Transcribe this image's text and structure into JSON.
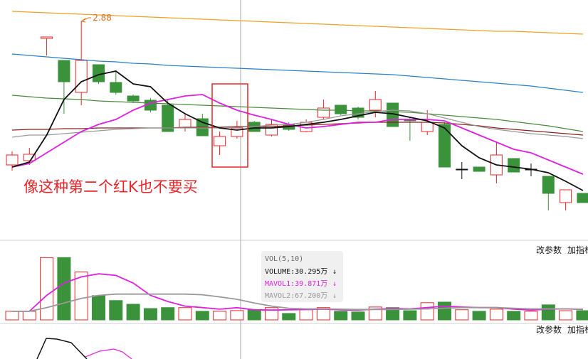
{
  "chart_data": [
    {
      "type": "candlestick",
      "ylim": [
        2.27,
        2.94
      ],
      "up_color": "#e8262a",
      "down_color": "#3a923a",
      "flat_color": "#111111",
      "open": [
        2.476,
        2.488,
        2.832,
        2.77,
        2.68,
        2.758,
        2.708,
        2.67,
        2.658,
        2.644,
        2.58,
        2.606,
        2.53,
        2.556,
        2.596,
        2.56,
        2.59,
        2.57,
        2.61,
        2.644,
        2.636,
        2.63,
        2.65,
        2.604,
        2.57,
        2.59,
        2.464,
        2.47,
        2.448,
        2.494,
        2.464,
        2.444,
        2.37,
        2.396
      ],
      "high": [
        2.514,
        2.524,
        2.836,
        2.77,
        2.88,
        2.758,
        2.74,
        2.674,
        2.664,
        2.66,
        2.62,
        2.62,
        2.57,
        2.6,
        2.6,
        2.604,
        2.596,
        2.604,
        2.66,
        2.644,
        2.64,
        2.684,
        2.65,
        2.61,
        2.63,
        2.596,
        2.484,
        2.47,
        2.54,
        2.494,
        2.48,
        2.444,
        2.406,
        2.396
      ],
      "low": [
        2.46,
        2.476,
        2.784,
        2.62,
        2.644,
        2.704,
        2.674,
        2.65,
        2.624,
        2.57,
        2.57,
        2.558,
        2.504,
        2.55,
        2.57,
        2.556,
        2.572,
        2.568,
        2.604,
        2.616,
        2.604,
        2.61,
        2.584,
        2.544,
        2.56,
        2.47,
        2.436,
        2.458,
        2.424,
        2.456,
        2.444,
        2.348,
        2.348,
        2.37
      ],
      "close": [
        2.504,
        2.506,
        2.836,
        2.71,
        2.77,
        2.71,
        2.68,
        2.656,
        2.63,
        2.57,
        2.604,
        2.558,
        2.556,
        2.58,
        2.57,
        2.59,
        2.576,
        2.596,
        2.636,
        2.62,
        2.61,
        2.66,
        2.584,
        2.6,
        2.596,
        2.47,
        2.464,
        2.458,
        2.504,
        2.456,
        2.464,
        2.396,
        2.406,
        2.37
      ],
      "series": [
        {
          "color": "#f0a020",
          "values": [
            2.908,
            2.906,
            2.904,
            2.902,
            2.9,
            2.898,
            2.896,
            2.894,
            2.892,
            2.89,
            2.888,
            2.886,
            2.884,
            2.882,
            2.88,
            2.878,
            2.876,
            2.874,
            2.872,
            2.87,
            2.868,
            2.866,
            2.864,
            2.862,
            2.86,
            2.858,
            2.856,
            2.854,
            2.852,
            2.852,
            2.85,
            2.848,
            2.846,
            2.844
          ]
        },
        {
          "color": "#2a7fc8",
          "values": [
            2.788,
            2.784,
            2.78,
            2.776,
            2.772,
            2.768,
            2.766,
            2.762,
            2.76,
            2.756,
            2.754,
            2.752,
            2.75,
            2.748,
            2.746,
            2.744,
            2.742,
            2.74,
            2.738,
            2.736,
            2.734,
            2.732,
            2.73,
            2.726,
            2.722,
            2.718,
            2.714,
            2.71,
            2.706,
            2.702,
            2.698,
            2.692,
            2.686,
            2.68
          ]
        },
        {
          "color": "#4a8a3a",
          "values": [
            2.672,
            2.668,
            2.664,
            2.662,
            2.66,
            2.656,
            2.654,
            2.652,
            2.65,
            2.648,
            2.646,
            2.644,
            2.642,
            2.64,
            2.638,
            2.636,
            2.634,
            2.632,
            2.63,
            2.63,
            2.628,
            2.628,
            2.626,
            2.624,
            2.62,
            2.616,
            2.612,
            2.608,
            2.604,
            2.598,
            2.592,
            2.586,
            2.578,
            2.57
          ]
        },
        {
          "color": "#8b2020",
          "values": [
            2.574,
            2.576,
            2.576,
            2.578,
            2.578,
            2.58,
            2.58,
            2.58,
            2.58,
            2.58,
            2.582,
            2.582,
            2.582,
            2.584,
            2.584,
            2.584,
            2.586,
            2.588,
            2.59,
            2.592,
            2.594,
            2.596,
            2.596,
            2.596,
            2.596,
            2.594,
            2.59,
            2.586,
            2.58,
            2.576,
            2.572,
            2.568,
            2.564,
            2.56
          ]
        },
        {
          "color": "#999999",
          "values": [
            2.554,
            2.56,
            2.56,
            2.564,
            2.568,
            2.572,
            2.576,
            2.578,
            2.58,
            2.58,
            2.58,
            2.58,
            2.58,
            2.582,
            2.584,
            2.588,
            2.59,
            2.596,
            2.604,
            2.614,
            2.62,
            2.626,
            2.63,
            2.628,
            2.62,
            2.608,
            2.596,
            2.584,
            2.576,
            2.57,
            2.564,
            2.56,
            2.556,
            2.55
          ]
        },
        {
          "color": "#e020e0",
          "values": [
            2.47,
            2.48,
            2.51,
            2.54,
            2.57,
            2.59,
            2.604,
            2.63,
            2.65,
            2.66,
            2.67,
            2.674,
            2.65,
            2.63,
            2.616,
            2.604,
            2.59,
            2.58,
            2.584,
            2.59,
            2.596,
            2.596,
            2.604,
            2.604,
            2.604,
            2.6,
            2.58,
            2.56,
            2.54,
            2.52,
            2.51,
            2.49,
            2.47,
            2.45
          ]
        },
        {
          "color": "#111111",
          "values": [
            2.47,
            2.484,
            2.56,
            2.66,
            2.71,
            2.73,
            2.74,
            2.704,
            2.696,
            2.65,
            2.62,
            2.596,
            2.58,
            2.574,
            2.58,
            2.58,
            2.584,
            2.59,
            2.596,
            2.604,
            2.614,
            2.624,
            2.62,
            2.61,
            2.6,
            2.58,
            2.53,
            2.496,
            2.476,
            2.47,
            2.464,
            2.454,
            2.43,
            2.404
          ]
        }
      ],
      "note": "像这种第二个红K也不要买",
      "buttons": [
        "改参数",
        "加指标"
      ]
    },
    {
      "type": "volume",
      "ylim": [
        0,
        220
      ],
      "values": [
        28,
        28,
        203,
        203,
        156,
        79,
        63,
        51,
        37,
        40,
        40,
        28,
        28,
        30.295,
        33,
        40,
        21,
        33,
        40,
        28,
        26,
        42,
        40,
        30,
        56,
        58,
        33,
        28,
        35,
        28,
        28,
        49,
        30,
        30
      ],
      "series": [
        {
          "color": "#e020e0",
          "values": [
            28,
            28,
            80,
            120,
            140,
            150,
            145,
            120,
            80,
            60,
            45,
            40,
            35,
            39.871,
            33,
            32,
            33,
            34,
            35,
            33,
            32,
            35,
            37,
            36,
            40,
            45,
            42,
            40,
            40,
            35,
            32,
            35,
            36,
            34
          ]
        },
        {
          "color": "#999999",
          "values": [
            28,
            28,
            40,
            55,
            70,
            80,
            84,
            84,
            84,
            84,
            84,
            82,
            75,
            67.2,
            55,
            45,
            38,
            36,
            36,
            35,
            34,
            34,
            34,
            35,
            36,
            38,
            40,
            40,
            40,
            38,
            36,
            36,
            36,
            35
          ]
        }
      ],
      "readout": {
        "title": "VOL(5,10)",
        "items": [
          {
            "text": "VOLUME:30.295万",
            "arrow": "↓",
            "color": "#111111"
          },
          {
            "text": "MAVOL1:39.871万",
            "arrow": "↓",
            "color": "#e020e0"
          },
          {
            "text": "MAVOL2:67.200万",
            "arrow": "↓",
            "color": "#999999"
          }
        ]
      },
      "buttons": [
        "改参数",
        "加指标"
      ]
    }
  ]
}
